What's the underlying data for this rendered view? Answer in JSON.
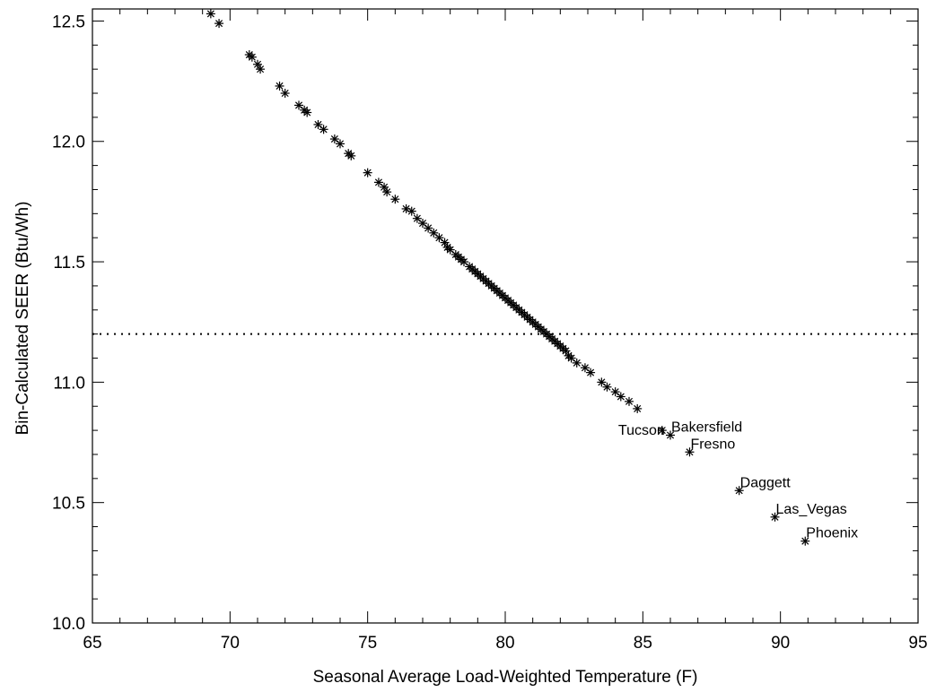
{
  "chart_data": {
    "type": "scatter",
    "title": "",
    "xlabel": "Seasonal Average Load-Weighted Temperature (F)",
    "ylabel": "Bin-Calculated SEER (Btu/Wh)",
    "xlim": [
      65,
      95
    ],
    "ylim": [
      10.0,
      12.55
    ],
    "xticks": [
      65,
      70,
      75,
      80,
      85,
      90,
      95
    ],
    "xtick_labels": [
      "65",
      "70",
      "75",
      "80",
      "85",
      "90",
      "95"
    ],
    "yticks": [
      10.0,
      10.5,
      11.0,
      11.5,
      12.0,
      12.5
    ],
    "ytick_labels": [
      "10.0",
      "10.5",
      "11.0",
      "11.5",
      "12.0",
      "12.5"
    ],
    "marker": "asterisk",
    "grid": false,
    "reference_line": {
      "y": 11.2,
      "style": "dotted"
    },
    "series": [
      {
        "points": [
          [
            69.3,
            12.53
          ],
          [
            69.6,
            12.49
          ],
          [
            70.7,
            12.36
          ],
          [
            70.8,
            12.35
          ],
          [
            71.0,
            12.32
          ],
          [
            71.1,
            12.3
          ],
          [
            71.8,
            12.23
          ],
          [
            72.0,
            12.2
          ],
          [
            72.5,
            12.15
          ],
          [
            72.7,
            12.13
          ],
          [
            72.8,
            12.12
          ],
          [
            73.2,
            12.07
          ],
          [
            73.4,
            12.05
          ],
          [
            73.8,
            12.01
          ],
          [
            74.0,
            11.99
          ],
          [
            74.3,
            11.95
          ],
          [
            74.4,
            11.94
          ],
          [
            75.0,
            11.87
          ],
          [
            75.4,
            11.83
          ],
          [
            75.6,
            11.81
          ],
          [
            75.7,
            11.79
          ],
          [
            76.0,
            11.76
          ],
          [
            76.4,
            11.72
          ],
          [
            76.6,
            11.71
          ],
          [
            76.8,
            11.68
          ],
          [
            77.0,
            11.66
          ],
          [
            77.2,
            11.64
          ],
          [
            77.4,
            11.62
          ],
          [
            77.6,
            11.6
          ],
          [
            77.8,
            11.58
          ],
          [
            77.9,
            11.56
          ],
          [
            78.0,
            11.55
          ],
          [
            78.2,
            11.53
          ],
          [
            78.3,
            11.52
          ],
          [
            78.4,
            11.51
          ],
          [
            78.5,
            11.5
          ],
          [
            78.7,
            11.48
          ],
          [
            78.8,
            11.47
          ],
          [
            78.9,
            11.46
          ],
          [
            79.0,
            11.45
          ],
          [
            79.1,
            11.44
          ],
          [
            79.2,
            11.43
          ],
          [
            79.3,
            11.42
          ],
          [
            79.4,
            11.41
          ],
          [
            79.5,
            11.4
          ],
          [
            79.6,
            11.39
          ],
          [
            79.7,
            11.38
          ],
          [
            79.8,
            11.37
          ],
          [
            79.9,
            11.36
          ],
          [
            80.0,
            11.35
          ],
          [
            80.1,
            11.34
          ],
          [
            80.2,
            11.33
          ],
          [
            80.3,
            11.32
          ],
          [
            80.4,
            11.31
          ],
          [
            80.5,
            11.3
          ],
          [
            80.6,
            11.29
          ],
          [
            80.7,
            11.28
          ],
          [
            80.8,
            11.27
          ],
          [
            80.9,
            11.26
          ],
          [
            81.0,
            11.25
          ],
          [
            81.1,
            11.24
          ],
          [
            81.2,
            11.23
          ],
          [
            81.3,
            11.22
          ],
          [
            81.4,
            11.21
          ],
          [
            81.5,
            11.2
          ],
          [
            81.6,
            11.19
          ],
          [
            81.7,
            11.18
          ],
          [
            81.8,
            11.17
          ],
          [
            81.9,
            11.16
          ],
          [
            82.0,
            11.15
          ],
          [
            82.1,
            11.14
          ],
          [
            82.2,
            11.13
          ],
          [
            82.3,
            11.11
          ],
          [
            82.4,
            11.1
          ],
          [
            82.6,
            11.08
          ],
          [
            82.9,
            11.06
          ],
          [
            83.1,
            11.04
          ],
          [
            83.5,
            11.0
          ],
          [
            83.7,
            10.98
          ],
          [
            84.0,
            10.96
          ],
          [
            84.2,
            10.94
          ],
          [
            84.5,
            10.92
          ],
          [
            84.8,
            10.89
          ]
        ]
      }
    ],
    "labeled_points": [
      {
        "x": 85.7,
        "y": 10.8,
        "label": "Tucson"
      },
      {
        "x": 86.0,
        "y": 10.78,
        "label": "Bakersfield"
      },
      {
        "x": 86.7,
        "y": 10.71,
        "label": "Fresno"
      },
      {
        "x": 88.5,
        "y": 10.55,
        "label": "Daggett"
      },
      {
        "x": 89.8,
        "y": 10.44,
        "label": "Las_Vegas"
      },
      {
        "x": 90.9,
        "y": 10.34,
        "label": "Phoenix"
      }
    ]
  }
}
